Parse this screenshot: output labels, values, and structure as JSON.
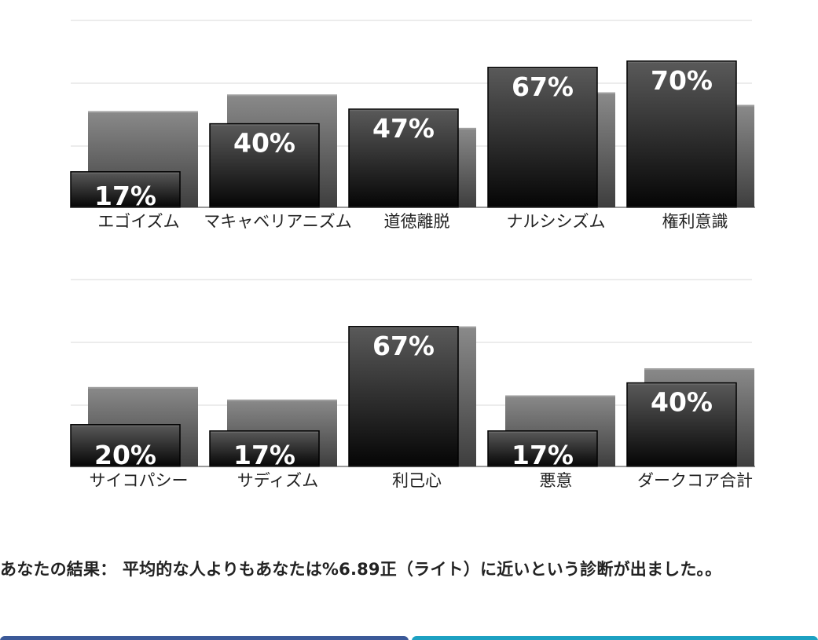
{
  "chart_data": [
    {
      "type": "bar",
      "categories": [
        "エゴイズム",
        "マキャベリアニズム",
        "道徳離脱",
        "ナルシシズム",
        "権利意識"
      ],
      "series": [
        {
          "values": [
            17,
            40,
            47,
            67,
            70
          ]
        },
        {
          "values": [
            46,
            54,
            38,
            55,
            49
          ]
        }
      ],
      "labels": [
        "17%",
        "40%",
        "47%",
        "67%",
        "70%"
      ],
      "ylim": [
        0,
        100
      ],
      "grid": true
    },
    {
      "type": "bar",
      "categories": [
        "サイコパシー",
        "サディズム",
        "利己心",
        "悪意",
        "ダークコア合計"
      ],
      "series": [
        {
          "values": [
            20,
            17,
            67,
            17,
            40
          ]
        },
        {
          "values": [
            38,
            32,
            67,
            34,
            47
          ]
        }
      ],
      "labels": [
        "20%",
        "17%",
        "67%",
        "17%",
        "40%"
      ],
      "ylim": [
        0,
        100
      ],
      "grid": true
    }
  ],
  "result": {
    "text": "あなたの結果： 平均的な人よりもあなたは%6.89正（ライト）に近いという診断が出ました。。"
  },
  "colors": {
    "grid": "#ececec",
    "bar_front_top": "#5a5a5a",
    "bar_front_bottom": "#050505",
    "bar_back_top": "#8a8a8a",
    "bar_back_bottom": "#3e3e3e",
    "button_left": "#3b5998",
    "button_right": "#1da1c2"
  }
}
